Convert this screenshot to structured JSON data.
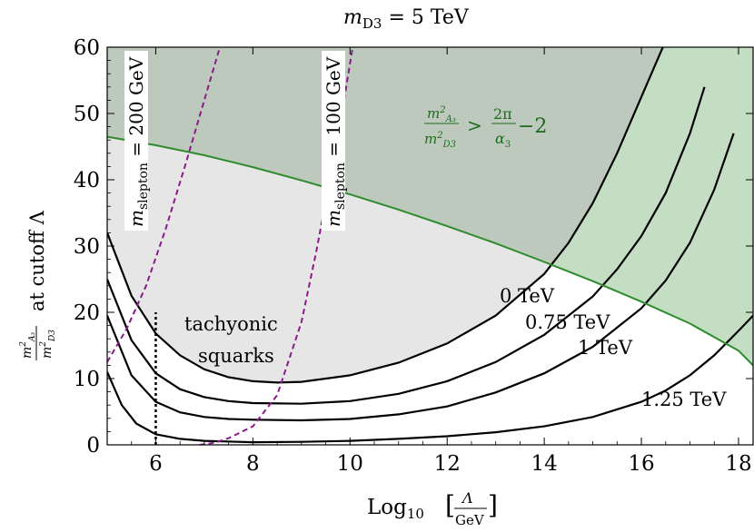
{
  "chart_data": {
    "type": "line",
    "title_main": "m",
    "title_sub": "D3",
    "title_rest": " = 5 TeV",
    "xlabel_prefix": "Log",
    "xlabel_sub": "10",
    "xlabel_num": "Λ",
    "xlabel_den": "GeV",
    "ylabel_num_m": "m",
    "ylabel_num_sub": "A₃",
    "ylabel_den_m": "m",
    "ylabel_den_sub": "D3",
    "ylabel_sup": "2",
    "ylabel_rest": "at cutoff Λ",
    "xlim": [
      5,
      18.3
    ],
    "ylim": [
      0,
      60
    ],
    "xticks": [
      6,
      8,
      10,
      12,
      14,
      16,
      18
    ],
    "yticks": [
      0,
      10,
      20,
      30,
      40,
      50,
      60
    ],
    "colors": {
      "green_line": "#2e8b2e",
      "green_region": "#c3dec3",
      "gray_region": "#e6e6e6",
      "dark_region": "#bcc9bc",
      "slepton": "#8b1a8b",
      "tachyonic": "#a52a2a",
      "bound_text": "#1e6b1e"
    },
    "bound_curve": {
      "name": "green-bound",
      "x": [
        5,
        6,
        7,
        8,
        9,
        10,
        11,
        12,
        13,
        14,
        15,
        16,
        17,
        18,
        18.3
      ],
      "y": [
        46.5,
        45.2,
        43.7,
        41.9,
        39.9,
        37.8,
        35.5,
        33.0,
        30.4,
        27.6,
        24.7,
        21.6,
        18.3,
        14.2,
        12.0
      ]
    },
    "series": [
      {
        "name": "0 TeV",
        "x": [
          5,
          5.5,
          6,
          6.5,
          7,
          7.5,
          8,
          8.5,
          9,
          10,
          11,
          12,
          13,
          14,
          14.5,
          15,
          15.5,
          16,
          16.5
        ],
        "y": [
          32,
          22.5,
          16.8,
          13.5,
          11.4,
          10.2,
          9.6,
          9.4,
          9.5,
          10.5,
          12.4,
          15.3,
          19.5,
          25.8,
          30.5,
          36.5,
          44,
          52.5,
          61
        ]
      },
      {
        "name": "0.75 TeV",
        "x": [
          5,
          5.5,
          6,
          6.5,
          7,
          7.5,
          8,
          9,
          10,
          11,
          12,
          13,
          14,
          15,
          15.5,
          16,
          16.5,
          17,
          17.3
        ],
        "y": [
          25,
          15.8,
          10.8,
          8.4,
          7.2,
          6.6,
          6.3,
          6.2,
          6.6,
          7.7,
          9.6,
          12.5,
          16.6,
          22.4,
          26.5,
          31.5,
          38,
          47,
          54
        ]
      },
      {
        "name": "1 TeV",
        "x": [
          5,
          5.5,
          6,
          6.5,
          7,
          7.5,
          8,
          9,
          10,
          11,
          12,
          13,
          14,
          15,
          16,
          16.5,
          17,
          17.5,
          17.9
        ],
        "y": [
          19.5,
          10.5,
          6.5,
          4.9,
          4.2,
          3.9,
          3.8,
          3.7,
          3.9,
          4.6,
          5.8,
          7.9,
          10.8,
          14.8,
          20.6,
          24.8,
          30.5,
          38.5,
          47
        ]
      },
      {
        "name": "1.25 TeV",
        "x": [
          5,
          5.3,
          5.6,
          6,
          6.5,
          7,
          8,
          9,
          10,
          11,
          12,
          13,
          14,
          15,
          16,
          16.5,
          17,
          17.5,
          18,
          18.3
        ],
        "y": [
          11,
          6,
          3.2,
          1.6,
          0.9,
          0.6,
          0.4,
          0.45,
          0.6,
          0.9,
          1.3,
          1.9,
          2.8,
          4.2,
          6.5,
          8.2,
          10.5,
          13.5,
          17.2,
          19.5
        ]
      }
    ],
    "slepton_curves": [
      {
        "name": "200 GeV",
        "x": [
          5,
          5.4,
          5.8,
          6.2,
          6.6,
          7.0,
          7.4
        ],
        "y": [
          12.5,
          17.5,
          24,
          32.5,
          42,
          52,
          62
        ]
      },
      {
        "name": "100 GeV",
        "x": [
          6.9,
          7.2,
          7.5,
          8,
          8.5,
          9,
          9.3,
          9.6,
          9.9,
          10.1
        ],
        "y": [
          0,
          0.3,
          1,
          2.8,
          7.5,
          18.5,
          29,
          40.5,
          53,
          62
        ]
      }
    ],
    "cutoff_line": {
      "x": 6,
      "y_top": 20
    },
    "labels": {
      "curve_0": "0 TeV",
      "curve_075": "0.75 TeV",
      "curve_1": "1 TeV",
      "curve_125": "1.25 TeV",
      "tachyonic_line1": "tachyonic",
      "tachyonic_line2": "squarks",
      "slepton_m": "m",
      "slepton_sub": "slepton",
      "slepton_200_rest": " = 200 GeV",
      "slepton_100_rest": " = 100 GeV",
      "bound_lhs_num_m": "m",
      "bound_lhs_num_sub": "A₃",
      "bound_lhs_den_m": "m",
      "bound_lhs_den_sub": "D3",
      "bound_sup": "2",
      "bound_gt": ">",
      "bound_rhs_num": "2π",
      "bound_rhs_den": "α",
      "bound_rhs_den_sub": "3",
      "bound_minus": "−2"
    }
  }
}
